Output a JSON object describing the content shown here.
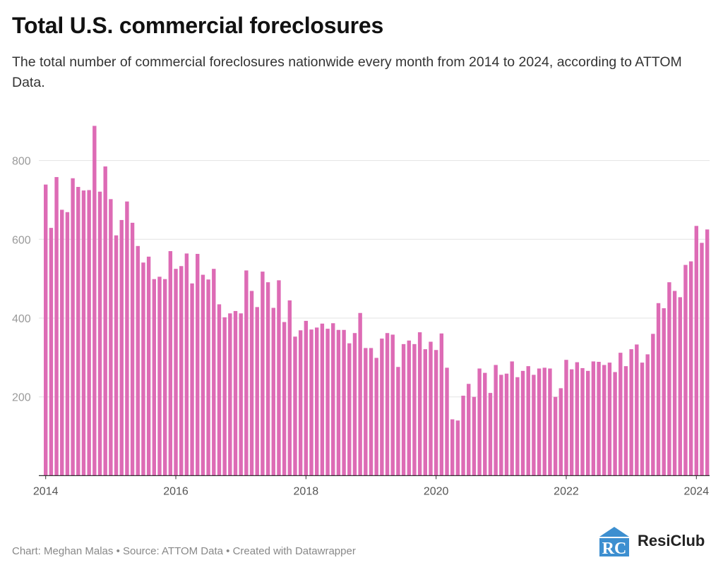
{
  "chart_data": {
    "type": "bar",
    "title": "Total U.S. commercial foreclosures",
    "subtitle": "The total number of commercial foreclosures nationwide every month from 2014 to 2024, according to ATTOM Data.",
    "xlabel": "",
    "ylabel": "",
    "x_start": "2014-01",
    "x_end": "2024-03",
    "x_ticks": [
      "2014",
      "2016",
      "2018",
      "2020",
      "2022",
      "2024"
    ],
    "y_ticks": [
      200,
      400,
      600,
      800
    ],
    "ylim": [
      0,
      900
    ],
    "grid": true,
    "bar_color": "#dd6bb5",
    "values": [
      739,
      629,
      758,
      675,
      669,
      755,
      733,
      724,
      725,
      888,
      721,
      785,
      702,
      610,
      649,
      696,
      642,
      583,
      541,
      556,
      499,
      505,
      499,
      570,
      525,
      532,
      564,
      488,
      563,
      510,
      498,
      525,
      435,
      402,
      412,
      418,
      412,
      521,
      469,
      428,
      518,
      491,
      426,
      496,
      390,
      445,
      353,
      369,
      393,
      371,
      376,
      386,
      373,
      387,
      370,
      370,
      336,
      362,
      413,
      324,
      324,
      299,
      348,
      362,
      358,
      276,
      334,
      343,
      334,
      364,
      321,
      340,
      319,
      361,
      274,
      143,
      140,
      203,
      233,
      200,
      272,
      261,
      210,
      281,
      256,
      259,
      290,
      250,
      266,
      278,
      256,
      272,
      274,
      272,
      200,
      222,
      294,
      270,
      288,
      273,
      266,
      290,
      289,
      281,
      287,
      263,
      312,
      278,
      321,
      333,
      287,
      308,
      360,
      438,
      425,
      491,
      469,
      453,
      535,
      544,
      634,
      591,
      625
    ]
  },
  "footer": "Chart: Meghan Malas • Source: ATTOM Data • Created with Datawrapper",
  "logo": {
    "text": "ResiClub",
    "mark": "RC",
    "color": "#3d8fd0"
  }
}
